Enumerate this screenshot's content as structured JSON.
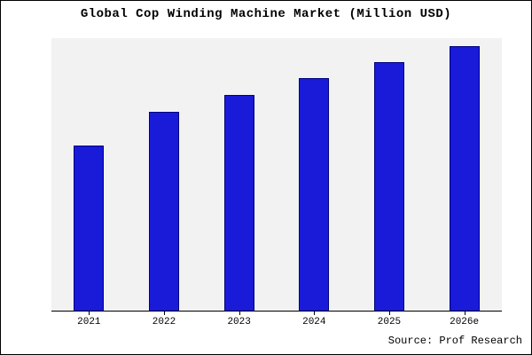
{
  "chart_data": {
    "type": "bar",
    "title": "Global Cop Winding Machine Market (Million USD)",
    "categories": [
      "2021",
      "2022",
      "2023",
      "2024",
      "2025",
      "2026e"
    ],
    "values": [
      62.5,
      75,
      81.5,
      88,
      94,
      100
    ],
    "ylim": [
      0,
      103
    ],
    "xlabel": "",
    "ylabel": "",
    "grid": false,
    "legend_position": "none",
    "bar_color": "#1a1ad9",
    "bar_edge_color": "#000080",
    "plot_background": "#f2f2f2",
    "source": "Source: Prof Research"
  }
}
